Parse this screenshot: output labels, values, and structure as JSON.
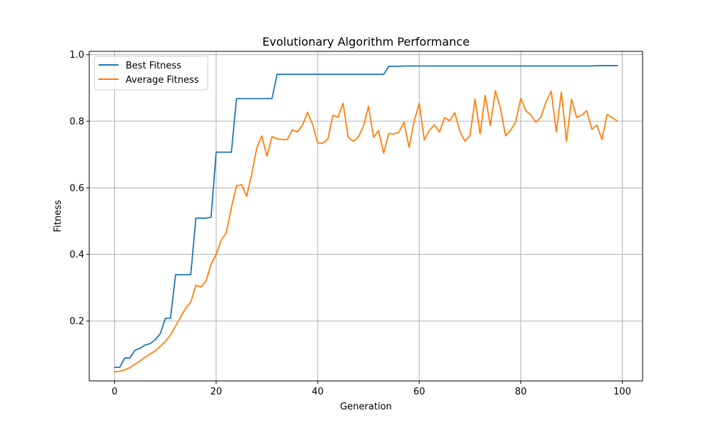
{
  "chart_data": {
    "type": "line",
    "title": "Evolutionary Algorithm Performance",
    "xlabel": "Generation",
    "ylabel": "Fitness",
    "xlim": [
      -5,
      104
    ],
    "ylim": [
      0.02,
      1.01
    ],
    "xticks": [
      0,
      20,
      40,
      60,
      80,
      100
    ],
    "yticks": [
      0.2,
      0.4,
      0.6,
      0.8,
      1.0
    ],
    "xtick_labels": [
      "0",
      "20",
      "40",
      "60",
      "80",
      "100"
    ],
    "ytick_labels": [
      "0.2",
      "0.4",
      "0.6",
      "0.8",
      "1.0"
    ],
    "grid": true,
    "legend_position": "top-left",
    "x": [
      0,
      1,
      2,
      3,
      4,
      5,
      6,
      7,
      8,
      9,
      10,
      11,
      12,
      13,
      14,
      15,
      16,
      17,
      18,
      19,
      20,
      21,
      22,
      23,
      24,
      25,
      26,
      27,
      28,
      29,
      30,
      31,
      32,
      33,
      34,
      35,
      36,
      37,
      38,
      39,
      40,
      41,
      42,
      43,
      44,
      45,
      46,
      47,
      48,
      49,
      50,
      51,
      52,
      53,
      54,
      55,
      56,
      57,
      58,
      59,
      60,
      61,
      62,
      63,
      64,
      65,
      66,
      67,
      68,
      69,
      70,
      71,
      72,
      73,
      74,
      75,
      76,
      77,
      78,
      79,
      80,
      81,
      82,
      83,
      84,
      85,
      86,
      87,
      88,
      89,
      90,
      91,
      92,
      93,
      94,
      95,
      96,
      97,
      98,
      99
    ],
    "series": [
      {
        "name": "Best Fitness",
        "color": "#1f77b4",
        "values": [
          0.061,
          0.061,
          0.089,
          0.089,
          0.112,
          0.118,
          0.128,
          0.132,
          0.144,
          0.162,
          0.208,
          0.208,
          0.339,
          0.339,
          0.339,
          0.339,
          0.509,
          0.509,
          0.509,
          0.512,
          0.707,
          0.707,
          0.707,
          0.707,
          0.868,
          0.868,
          0.868,
          0.868,
          0.868,
          0.868,
          0.868,
          0.868,
          0.941,
          0.941,
          0.941,
          0.941,
          0.941,
          0.941,
          0.941,
          0.941,
          0.941,
          0.941,
          0.941,
          0.941,
          0.941,
          0.941,
          0.941,
          0.941,
          0.941,
          0.941,
          0.941,
          0.941,
          0.941,
          0.941,
          0.965,
          0.965,
          0.965,
          0.966,
          0.966,
          0.966,
          0.966,
          0.966,
          0.966,
          0.966,
          0.966,
          0.966,
          0.966,
          0.966,
          0.966,
          0.966,
          0.966,
          0.966,
          0.966,
          0.966,
          0.966,
          0.966,
          0.966,
          0.966,
          0.966,
          0.966,
          0.966,
          0.966,
          0.966,
          0.966,
          0.966,
          0.966,
          0.966,
          0.966,
          0.966,
          0.966,
          0.966,
          0.966,
          0.966,
          0.966,
          0.966,
          0.967,
          0.967,
          0.967,
          0.967,
          0.967
        ]
      },
      {
        "name": "Average Fitness",
        "color": "#ff7f0e",
        "values": [
          0.047,
          0.049,
          0.053,
          0.06,
          0.07,
          0.08,
          0.091,
          0.101,
          0.11,
          0.124,
          0.139,
          0.157,
          0.185,
          0.212,
          0.238,
          0.257,
          0.307,
          0.302,
          0.32,
          0.37,
          0.4,
          0.443,
          0.465,
          0.541,
          0.605,
          0.61,
          0.575,
          0.64,
          0.72,
          0.756,
          0.695,
          0.754,
          0.747,
          0.745,
          0.745,
          0.774,
          0.768,
          0.788,
          0.827,
          0.79,
          0.735,
          0.734,
          0.747,
          0.818,
          0.812,
          0.854,
          0.752,
          0.74,
          0.752,
          0.785,
          0.845,
          0.752,
          0.772,
          0.704,
          0.763,
          0.762,
          0.767,
          0.797,
          0.722,
          0.8,
          0.854,
          0.744,
          0.773,
          0.789,
          0.768,
          0.811,
          0.802,
          0.826,
          0.77,
          0.74,
          0.757,
          0.866,
          0.762,
          0.878,
          0.787,
          0.892,
          0.839,
          0.756,
          0.773,
          0.798,
          0.869,
          0.832,
          0.818,
          0.797,
          0.813,
          0.86,
          0.89,
          0.768,
          0.888,
          0.74,
          0.866,
          0.812,
          0.818,
          0.832,
          0.776,
          0.788,
          0.745,
          0.82,
          0.811,
          0.801
        ]
      }
    ]
  }
}
